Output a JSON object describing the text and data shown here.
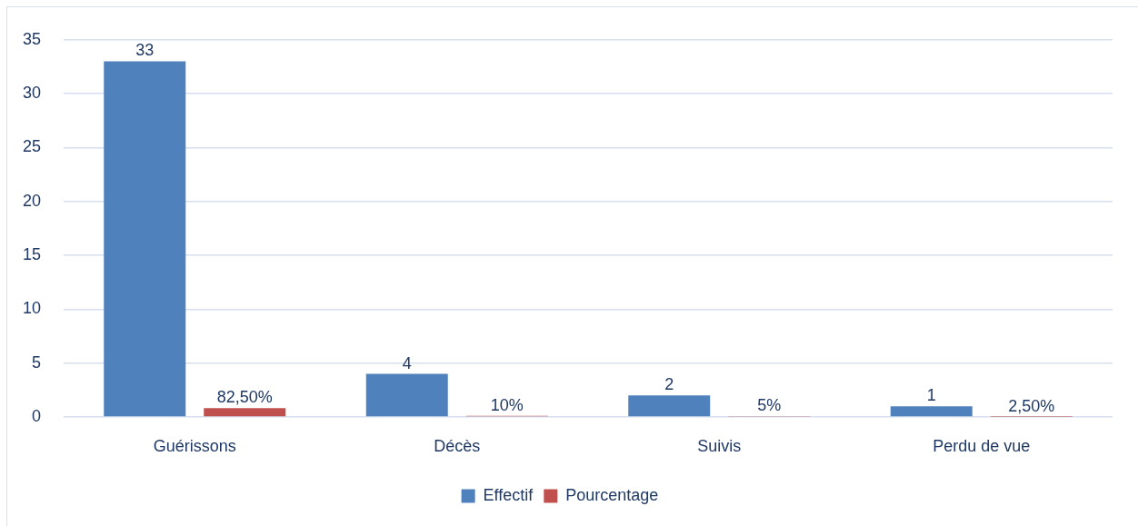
{
  "chart_data": {
    "type": "bar",
    "categories": [
      "Guérissons",
      "Décès",
      "Suivis",
      "Perdu de vue"
    ],
    "series": [
      {
        "name": "Effectif",
        "color": "#4f81bd",
        "values": [
          33,
          4,
          2,
          1
        ],
        "value_labels": [
          "33",
          "4",
          "2",
          "1"
        ]
      },
      {
        "name": "Pourcentage",
        "color": "#c0504d",
        "values": [
          0.825,
          0.1,
          0.05,
          0.025
        ],
        "value_labels": [
          "82,50%",
          "10%",
          "5%",
          "2,50%"
        ]
      }
    ],
    "ylim": [
      0,
      35
    ],
    "yticks": [
      0,
      5,
      10,
      15,
      20,
      25,
      30,
      35
    ],
    "grid": "y",
    "legend": "bottom"
  }
}
